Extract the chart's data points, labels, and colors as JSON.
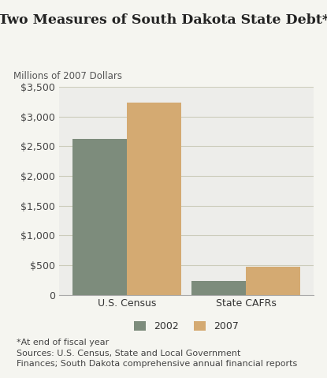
{
  "title": "Two Measures of South Dakota State Debt*",
  "ylabel": "Millions of 2007 Dollars",
  "categories": [
    "U.S. Census",
    "State CAFRs"
  ],
  "series": {
    "2002": [
      2620,
      230
    ],
    "2007": [
      3230,
      470
    ]
  },
  "bar_colors": {
    "2002": "#7d8c7c",
    "2007": "#d4aa72"
  },
  "ylim": [
    0,
    3500
  ],
  "yticks": [
    0,
    500,
    1000,
    1500,
    2000,
    2500,
    3000,
    3500
  ],
  "fig_bg_color": "#f5f5f0",
  "plot_bg_color": "#ededea",
  "grid_color": "#ccccbb",
  "footnote_line1": "*At end of fiscal year",
  "footnote_line2": "Sources: U.S. Census, State and Local Government",
  "footnote_line3": "Finances; South Dakota comprehensive annual financial reports",
  "title_fontsize": 12.5,
  "label_fontsize": 8.5,
  "tick_fontsize": 9,
  "legend_fontsize": 9,
  "footnote_fontsize": 8,
  "bar_width": 0.32,
  "x_positions": [
    0.3,
    1.0
  ]
}
